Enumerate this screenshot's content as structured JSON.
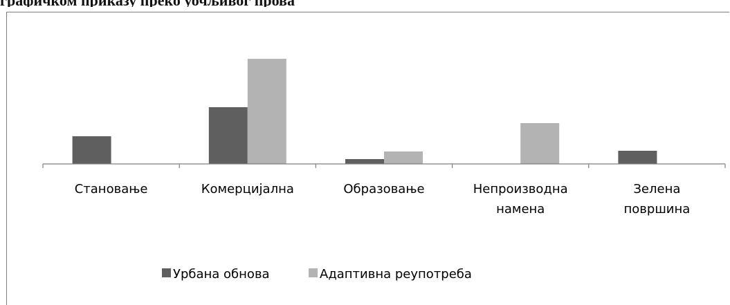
{
  "header_text": "графичком приказу преко уочљивог прова",
  "chart_data": {
    "type": "bar",
    "categories": [
      [
        "Становање"
      ],
      [
        "Комерцијална"
      ],
      [
        "Образовање"
      ],
      [
        "Непроизводна",
        "намена"
      ],
      [
        "Зелена",
        "површина"
      ]
    ],
    "series": [
      {
        "name": "Урбана обнова",
        "color": "#5f5f5f",
        "values": [
          40,
          82,
          7,
          0,
          19
        ]
      },
      {
        "name": "Адаптивна реупотреба",
        "color": "#b3b3b3",
        "values": [
          0,
          152,
          18,
          59,
          0
        ]
      }
    ],
    "ylim": [
      0,
      160
    ],
    "grid": false,
    "legend": "bottom"
  }
}
